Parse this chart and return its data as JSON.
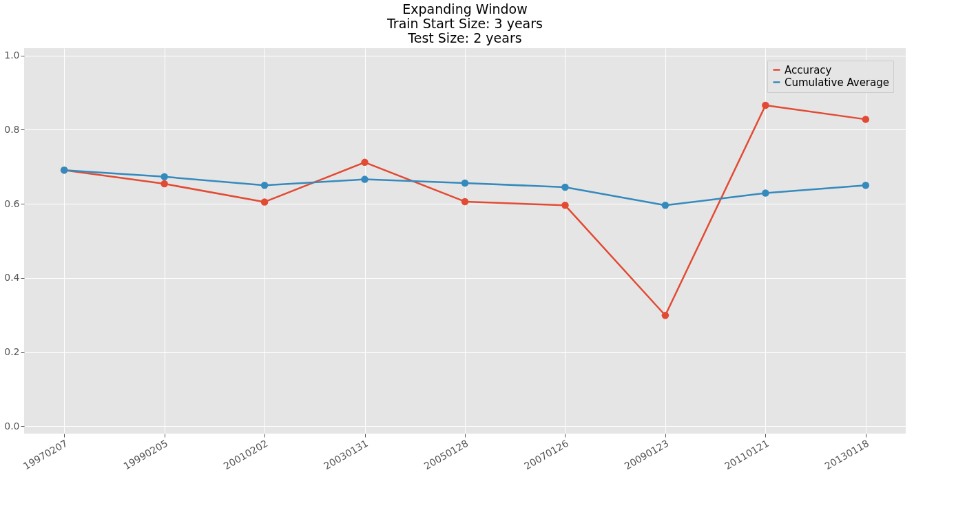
{
  "chart_data": {
    "type": "line",
    "title": "Expanding Window\nTrain Start Size: 3 years\nTest Size: 2 years",
    "categories": [
      "19970207",
      "19990205",
      "20010202",
      "20030131",
      "20050128",
      "20070126",
      "20090123",
      "20110121",
      "20130118"
    ],
    "series": [
      {
        "name": "Accuracy",
        "color": "#e24a33",
        "values": [
          0.691,
          0.654,
          0.605,
          0.712,
          0.606,
          0.596,
          0.299,
          0.866,
          0.828
        ]
      },
      {
        "name": "Cumulative Average",
        "color": "#348abd",
        "values": [
          0.691,
          0.673,
          0.65,
          0.666,
          0.656,
          0.645,
          0.596,
          0.629,
          0.65
        ]
      }
    ],
    "ylim": [
      -0.02,
      1.02
    ],
    "yticks": [
      {
        "value": 0,
        "label": "0.0"
      },
      {
        "value": 0.2,
        "label": "0.2"
      },
      {
        "value": 0.4,
        "label": "0.4"
      },
      {
        "value": 0.6,
        "label": "0.6"
      },
      {
        "value": 0.8,
        "label": "0.8"
      },
      {
        "value": 1,
        "label": "1.0"
      }
    ],
    "grid": true,
    "legend": "top right",
    "marker": "circle",
    "line_style": "solid"
  }
}
